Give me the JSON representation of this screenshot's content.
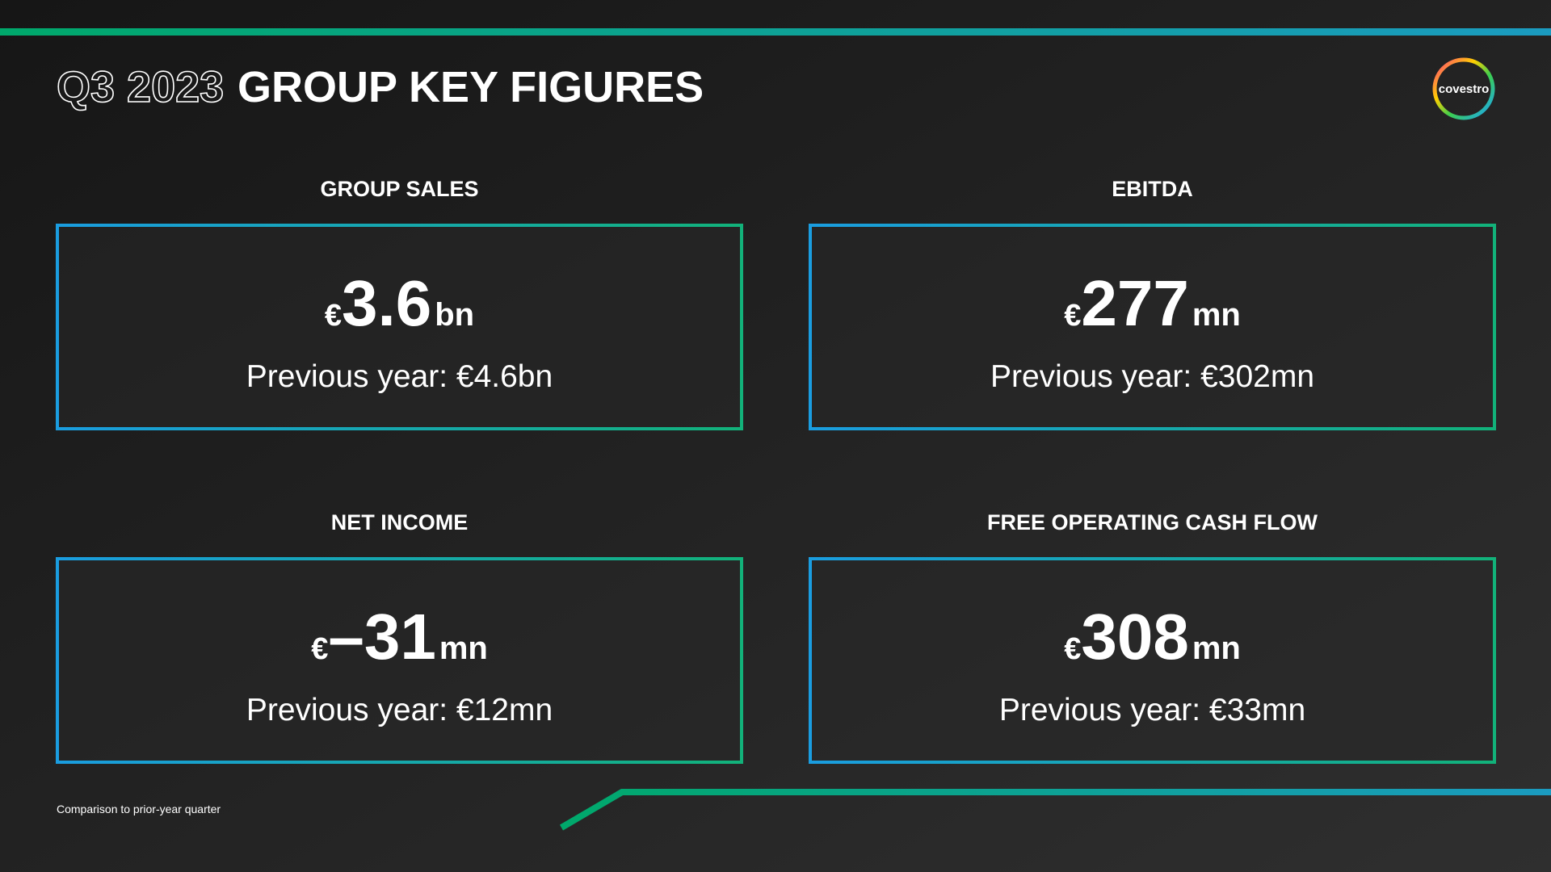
{
  "header": {
    "title_prefix": "Q3 2023",
    "title": "GROUP KEY FIGURES",
    "logo": "covestro"
  },
  "cards": [
    {
      "label": "GROUP SALES",
      "currency": "€",
      "value": "3.6",
      "unit": "bn",
      "previous": "Previous year: €4.6bn"
    },
    {
      "label": "EBITDA",
      "currency": "€",
      "value": "277",
      "unit": "mn",
      "previous": "Previous year: €302mn"
    },
    {
      "label": "NET INCOME",
      "currency": "€",
      "value": "–31",
      "unit": "mn",
      "previous": "Previous year: €12mn"
    },
    {
      "label": "FREE OPERATING CASH FLOW",
      "currency": "€",
      "value": "308",
      "unit": "mn",
      "previous": "Previous year: €33mn"
    }
  ],
  "footnote": "Comparison to prior-year quarter"
}
